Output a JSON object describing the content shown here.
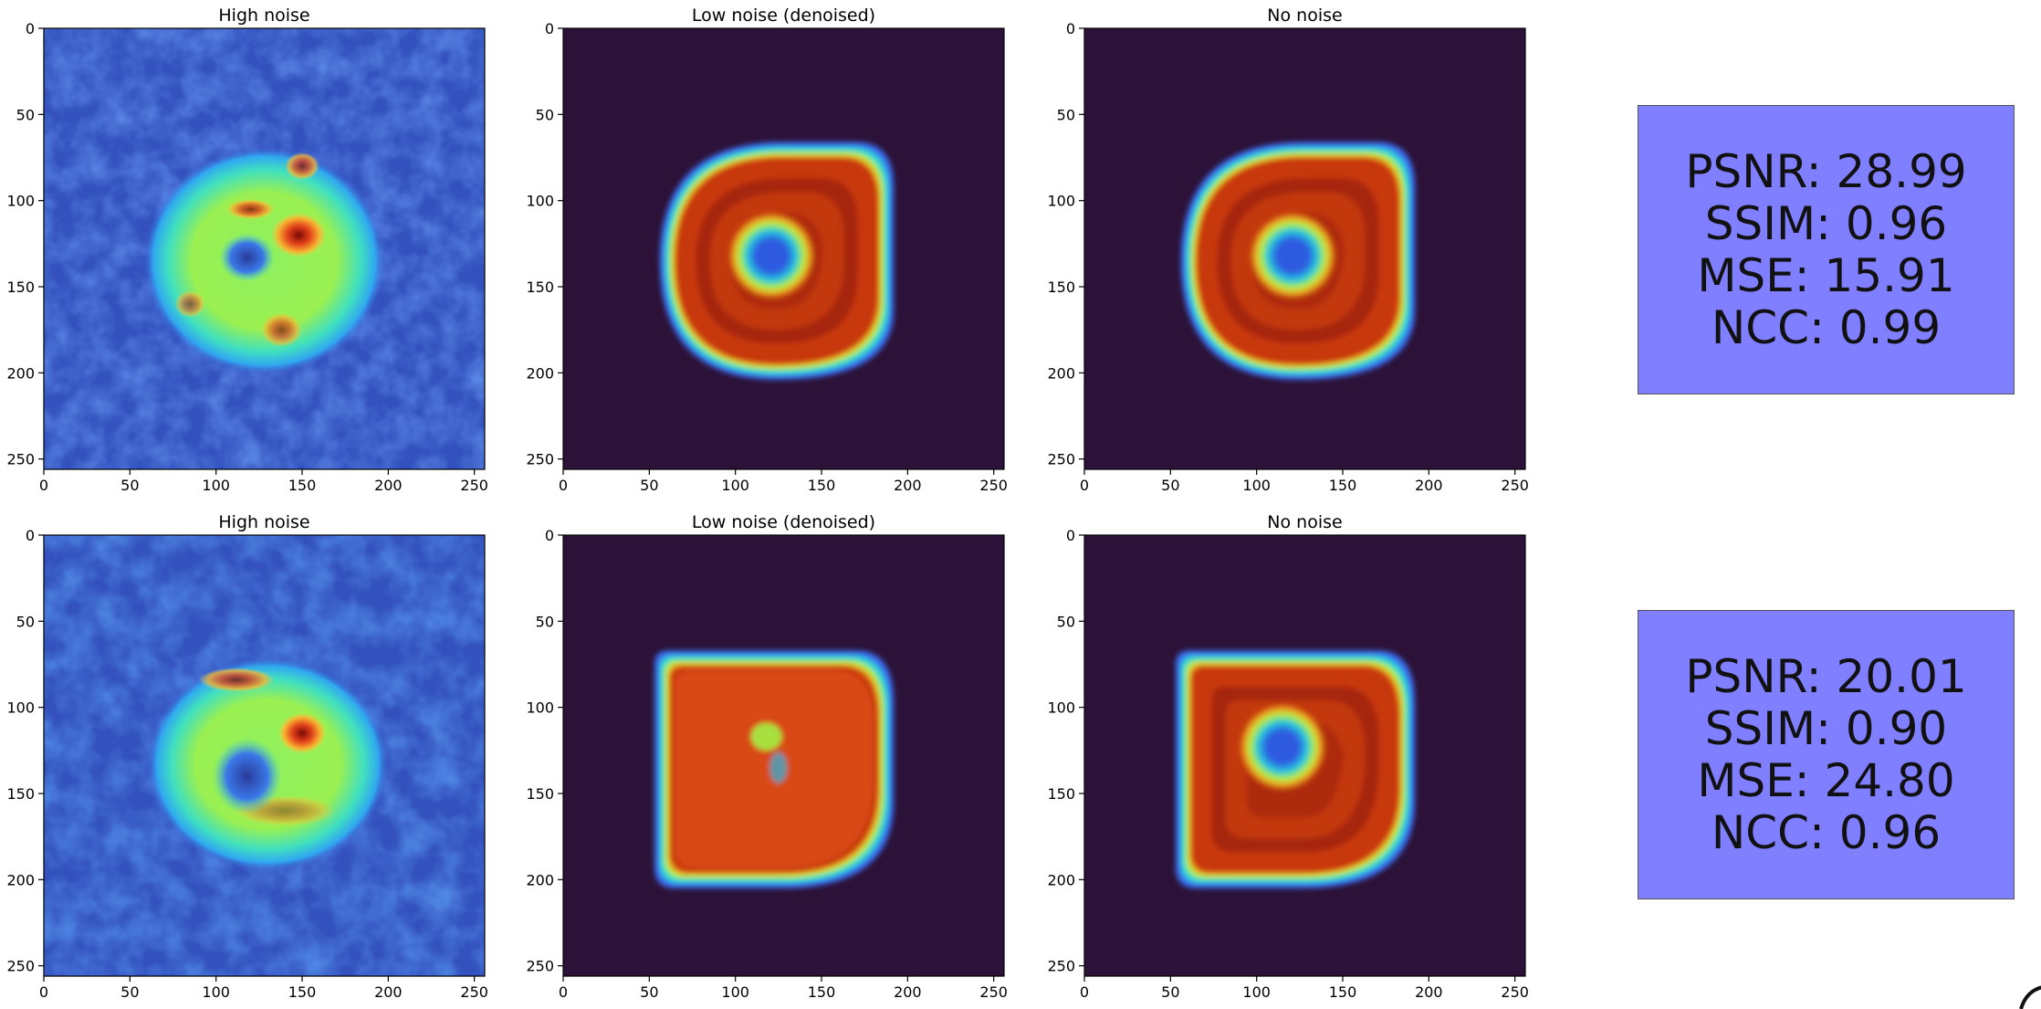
{
  "rows": [
    {
      "panels": [
        {
          "title": "High noise",
          "kind": "noisy",
          "variant": 1
        },
        {
          "title": "Low noise (denoised)",
          "kind": "clean",
          "variant": 1
        },
        {
          "title": "No noise",
          "kind": "clean",
          "variant": 1
        }
      ],
      "metrics": {
        "psnr": "PSNR: 28.99",
        "ssim": "SSIM: 0.96",
        "mse": "MSE: 15.91",
        "ncc": "NCC: 0.99"
      }
    },
    {
      "panels": [
        {
          "title": "High noise",
          "kind": "noisy",
          "variant": 2
        },
        {
          "title": "Low noise (denoised)",
          "kind": "clean",
          "variant": 2
        },
        {
          "title": "No noise",
          "kind": "clean",
          "variant": 3
        }
      ],
      "metrics": {
        "psnr": "PSNR: 20.01",
        "ssim": "SSIM: 0.90",
        "mse": "MSE: 24.80",
        "ncc": "NCC: 0.96"
      }
    }
  ],
  "axes": {
    "x_ticks": [
      "0",
      "50",
      "100",
      "150",
      "200",
      "250"
    ],
    "y_ticks": [
      "0",
      "50",
      "100",
      "150",
      "200",
      "250"
    ],
    "range": [
      0,
      256
    ]
  },
  "colors": {
    "background_dark": "#2c1238",
    "noise_blue": "#3b62d8",
    "ring_red": "#c2300a",
    "metrics_box": "#7f7fff"
  }
}
